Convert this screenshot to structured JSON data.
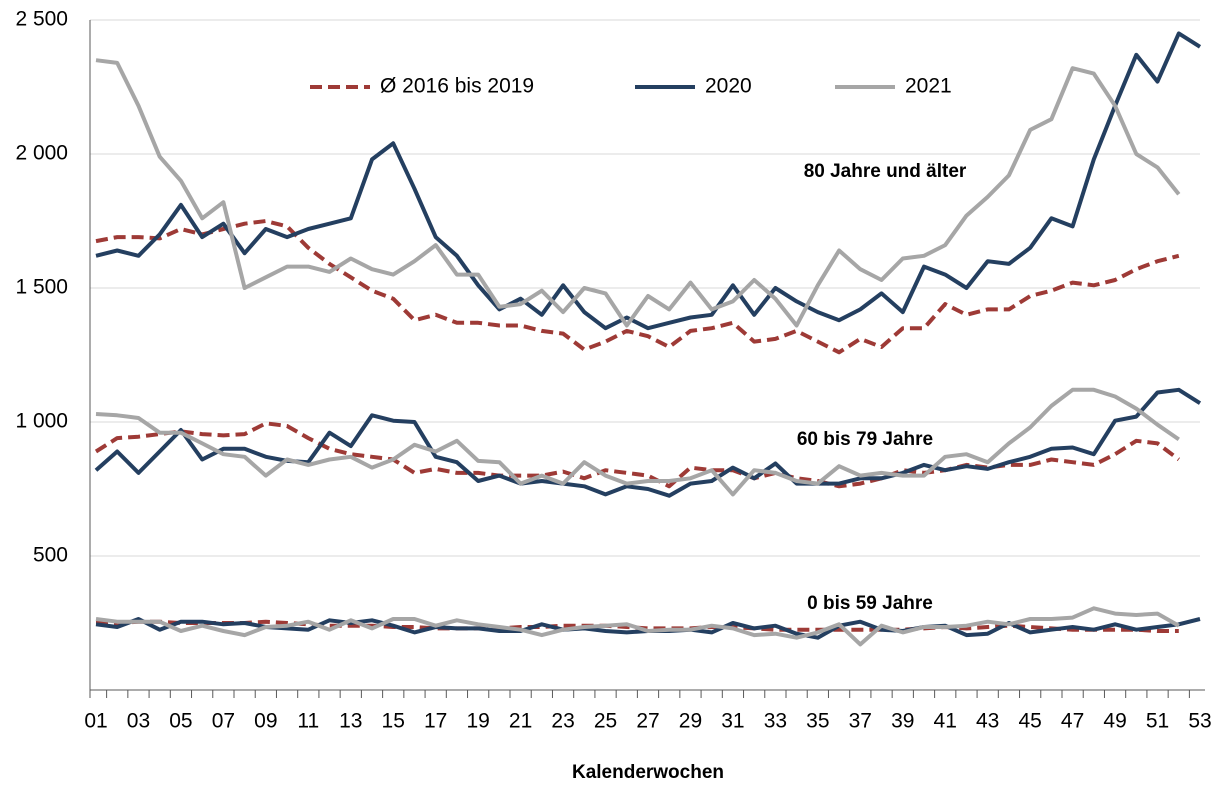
{
  "chart_data": {
    "type": "line",
    "categories": [
      "01",
      null,
      "03",
      null,
      "05",
      null,
      "07",
      null,
      "09",
      null,
      "11",
      null,
      "13",
      null,
      "15",
      null,
      "17",
      null,
      "19",
      null,
      "21",
      null,
      "23",
      null,
      "25",
      null,
      "27",
      null,
      "29",
      null,
      "31",
      null,
      "33",
      null,
      "35",
      null,
      "37",
      null,
      "39",
      null,
      "41",
      null,
      "43",
      null,
      "45",
      null,
      "47",
      null,
      "49",
      null,
      "51",
      null,
      "53"
    ],
    "series": [
      {
        "name": "Ø 2016 bis 2019",
        "color": "#9e3a36",
        "dashed": true
      },
      {
        "name": "2020",
        "color": "#243f60",
        "dashed": false
      },
      {
        "name": "2021",
        "color": "#a6a6a6",
        "dashed": false
      }
    ],
    "groups": [
      {
        "label": "80 Jahre und älter",
        "values": [
          [
            1675,
            1690,
            1690,
            1685,
            1720,
            1700,
            1720,
            1740,
            1750,
            1730,
            1650,
            1590,
            1540,
            1490,
            1460,
            1380,
            1400,
            1370,
            1370,
            1360,
            1360,
            1340,
            1330,
            1270,
            1300,
            1340,
            1320,
            1280,
            1340,
            1350,
            1370,
            1300,
            1310,
            1340,
            1300,
            1260,
            1310,
            1280,
            1350,
            1350,
            1440,
            1400,
            1420,
            1420,
            1470,
            1490,
            1520,
            1510,
            1530,
            1570,
            1600,
            1620,
            null
          ],
          [
            1620,
            1640,
            1620,
            1700,
            1810,
            1690,
            1740,
            1630,
            1720,
            1690,
            1720,
            1740,
            1760,
            1980,
            2040,
            1870,
            1690,
            1620,
            1510,
            1420,
            1460,
            1400,
            1510,
            1410,
            1350,
            1390,
            1350,
            1370,
            1390,
            1400,
            1510,
            1400,
            1500,
            1450,
            1410,
            1380,
            1420,
            1480,
            1410,
            1580,
            1550,
            1500,
            1600,
            1590,
            1650,
            1760,
            1730,
            1980,
            2180,
            2370,
            2270,
            2450,
            2400
          ],
          [
            2350,
            2340,
            2180,
            1990,
            1900,
            1760,
            1820,
            1500,
            1540,
            1580,
            1580,
            1560,
            1610,
            1570,
            1550,
            1600,
            1660,
            1550,
            1550,
            1430,
            1440,
            1490,
            1410,
            1500,
            1480,
            1360,
            1470,
            1420,
            1520,
            1420,
            1450,
            1530,
            1460,
            1360,
            1510,
            1640,
            1570,
            1530,
            1610,
            1620,
            1660,
            1770,
            1840,
            1920,
            2090,
            2130,
            2320,
            2300,
            2180,
            2000,
            1950,
            1850,
            null
          ]
        ]
      },
      {
        "label": "60 bis 79 Jahre",
        "values": [
          [
            890,
            940,
            945,
            955,
            965,
            955,
            950,
            955,
            995,
            985,
            940,
            900,
            880,
            870,
            860,
            810,
            825,
            810,
            810,
            800,
            800,
            800,
            815,
            790,
            820,
            810,
            800,
            760,
            830,
            820,
            820,
            790,
            810,
            790,
            780,
            760,
            770,
            790,
            820,
            810,
            820,
            840,
            830,
            840,
            840,
            860,
            850,
            840,
            880,
            930,
            920,
            860,
            null
          ],
          [
            820,
            890,
            810,
            890,
            970,
            860,
            900,
            900,
            870,
            855,
            850,
            960,
            910,
            1025,
            1005,
            1000,
            870,
            850,
            780,
            800,
            770,
            780,
            770,
            760,
            730,
            760,
            750,
            725,
            770,
            780,
            830,
            790,
            845,
            770,
            770,
            770,
            790,
            790,
            810,
            840,
            820,
            835,
            825,
            850,
            870,
            900,
            905,
            880,
            1005,
            1020,
            1110,
            1120,
            1070
          ],
          [
            1030,
            1025,
            1015,
            960,
            960,
            920,
            880,
            870,
            800,
            860,
            840,
            860,
            870,
            830,
            860,
            915,
            890,
            930,
            855,
            850,
            770,
            800,
            770,
            850,
            800,
            770,
            780,
            780,
            790,
            820,
            730,
            820,
            810,
            780,
            770,
            835,
            800,
            810,
            800,
            800,
            870,
            880,
            850,
            920,
            980,
            1060,
            1120,
            1120,
            1095,
            1050,
            990,
            935,
            null
          ]
        ]
      },
      {
        "label": "0 bis 59 Jahre",
        "values": [
          [
            250,
            250,
            255,
            255,
            250,
            250,
            250,
            250,
            255,
            250,
            245,
            240,
            240,
            240,
            235,
            235,
            230,
            230,
            230,
            230,
            235,
            235,
            240,
            240,
            240,
            235,
            230,
            230,
            230,
            235,
            235,
            230,
            225,
            225,
            225,
            225,
            225,
            225,
            225,
            230,
            235,
            230,
            235,
            240,
            235,
            230,
            225,
            225,
            225,
            225,
            220,
            220,
            null
          ],
          [
            245,
            235,
            265,
            225,
            255,
            255,
            245,
            250,
            235,
            230,
            225,
            260,
            250,
            260,
            240,
            215,
            235,
            230,
            230,
            220,
            220,
            245,
            225,
            230,
            220,
            215,
            220,
            220,
            225,
            215,
            250,
            230,
            240,
            210,
            195,
            240,
            255,
            225,
            220,
            235,
            240,
            205,
            210,
            250,
            215,
            225,
            235,
            225,
            245,
            225,
            235,
            245,
            265
          ],
          [
            265,
            255,
            255,
            255,
            220,
            240,
            220,
            205,
            235,
            240,
            255,
            225,
            260,
            230,
            265,
            265,
            240,
            260,
            245,
            235,
            225,
            205,
            225,
            235,
            240,
            245,
            220,
            225,
            225,
            240,
            230,
            205,
            210,
            195,
            215,
            245,
            170,
            240,
            215,
            235,
            235,
            240,
            255,
            245,
            265,
            265,
            270,
            305,
            285,
            280,
            285,
            240,
            null
          ]
        ]
      }
    ],
    "xlabel": "Kalenderwochen",
    "ylim": [
      0,
      2500
    ],
    "yticks": [
      {
        "value": 500,
        "label": "500"
      },
      {
        "value": 1000,
        "label": "1 000"
      },
      {
        "value": 1500,
        "label": "1 500"
      },
      {
        "value": 2000,
        "label": "2 000"
      },
      {
        "value": 2500,
        "label": "2 500"
      }
    ],
    "grid": true
  }
}
